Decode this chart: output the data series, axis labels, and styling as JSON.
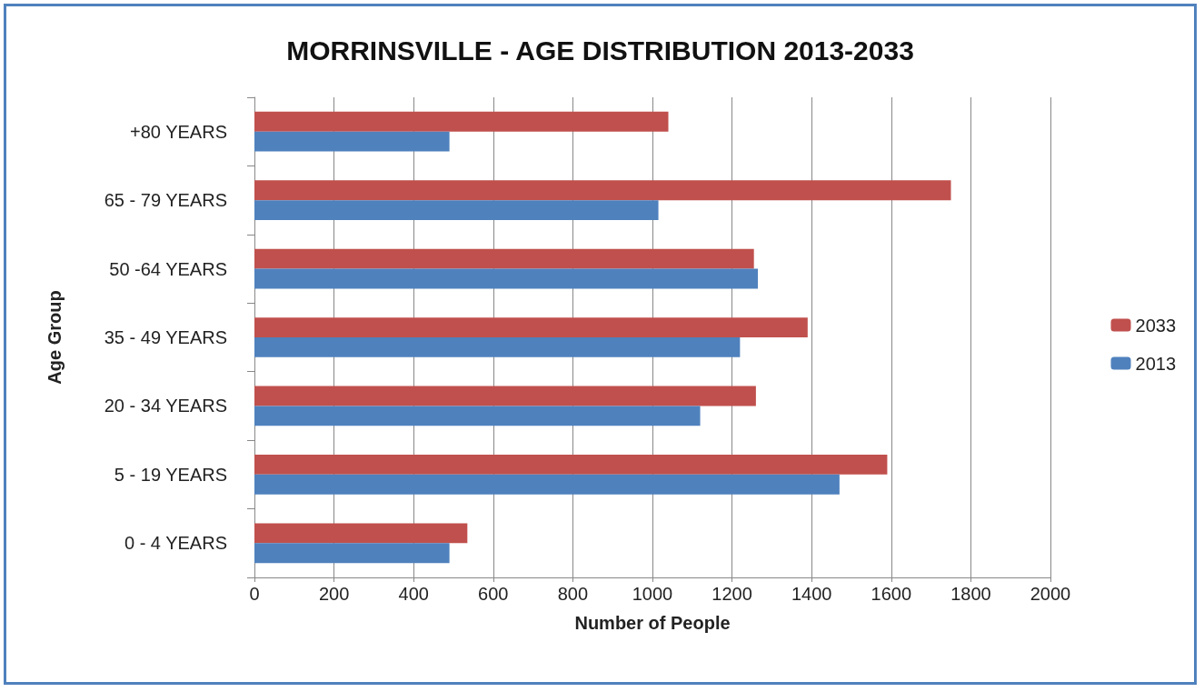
{
  "chart_data": {
    "type": "bar",
    "orientation": "horizontal",
    "title": "MORRINSVILLE - AGE DISTRIBUTION 2013-2033",
    "xlabel": "Number of People",
    "ylabel": "Age Group",
    "categories": [
      "+80 YEARS",
      "65 - 79 YEARS",
      "50 -64 YEARS",
      "35 - 49 YEARS",
      "20 - 34 YEARS",
      "5 - 19 YEARS",
      "0 - 4 YEARS"
    ],
    "series": [
      {
        "name": "2033",
        "color": "#c0504d",
        "values": [
          1040,
          1750,
          1255,
          1390,
          1260,
          1590,
          535
        ]
      },
      {
        "name": "2013",
        "color": "#4f81bd",
        "values": [
          490,
          1015,
          1265,
          1220,
          1120,
          1470,
          490
        ]
      }
    ],
    "xlim": [
      0,
      2000
    ],
    "xticks": [
      0,
      200,
      400,
      600,
      800,
      1000,
      1200,
      1400,
      1600,
      1800,
      2000
    ],
    "grid": "x",
    "legend": "right"
  }
}
